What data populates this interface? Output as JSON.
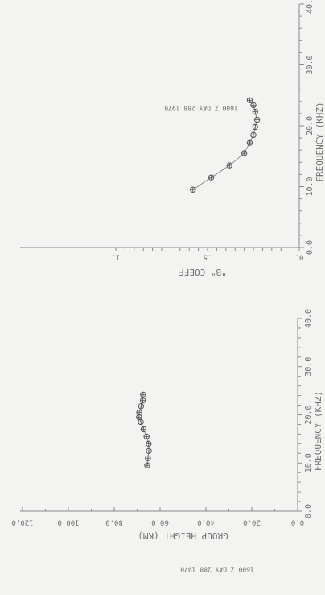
{
  "chart_data": [
    {
      "type": "line",
      "title": "",
      "xlabel": "FREQUENCY (KHZ)",
      "ylabel": "\"B\" COEFF",
      "caption": "1600 Z DAY 288 1970",
      "xlim": [
        0,
        40
      ],
      "x_tick_labels": [
        "0.0",
        "10.0",
        "20.0",
        "30.0",
        "40.0"
      ],
      "ylim": [
        0,
        1.0
      ],
      "y_tick_labels": [
        "0.",
        ".5",
        "1."
      ],
      "grid": false,
      "series": [
        {
          "x": [
            9.5,
            11.5,
            13.5,
            15.5,
            17.2,
            18.5,
            19.8,
            21.0,
            22.3,
            23.4,
            24.2
          ],
          "y": [
            0.58,
            0.48,
            0.38,
            0.3,
            0.27,
            0.25,
            0.24,
            0.23,
            0.24,
            0.25,
            0.27
          ]
        }
      ]
    },
    {
      "type": "line",
      "title": "",
      "xlabel": "FREQUENCY (KHZ)",
      "ylabel": "GROUP HEIGHT (KM)",
      "caption": "1600 Z DAY 288 1970",
      "xlim": [
        0,
        40
      ],
      "x_tick_labels": [
        "0.0",
        "10.0",
        "20.0",
        "30.0",
        "40.0"
      ],
      "ylim": [
        0,
        120
      ],
      "y_tick_labels": [
        "0.0",
        "20.0",
        "40.0",
        "60.0",
        "80.0",
        "100.0",
        "120.0"
      ],
      "grid": false,
      "series": [
        {
          "x": [
            9.5,
            11.0,
            12.5,
            14.0,
            15.5,
            17.0,
            18.5,
            19.5,
            20.5,
            21.8,
            23.0,
            24.2
          ],
          "y": [
            65.6,
            65.3,
            64.9,
            65.0,
            65.9,
            67.2,
            68.4,
            69.2,
            69.1,
            68.3,
            67.5,
            67.4
          ]
        }
      ]
    }
  ]
}
